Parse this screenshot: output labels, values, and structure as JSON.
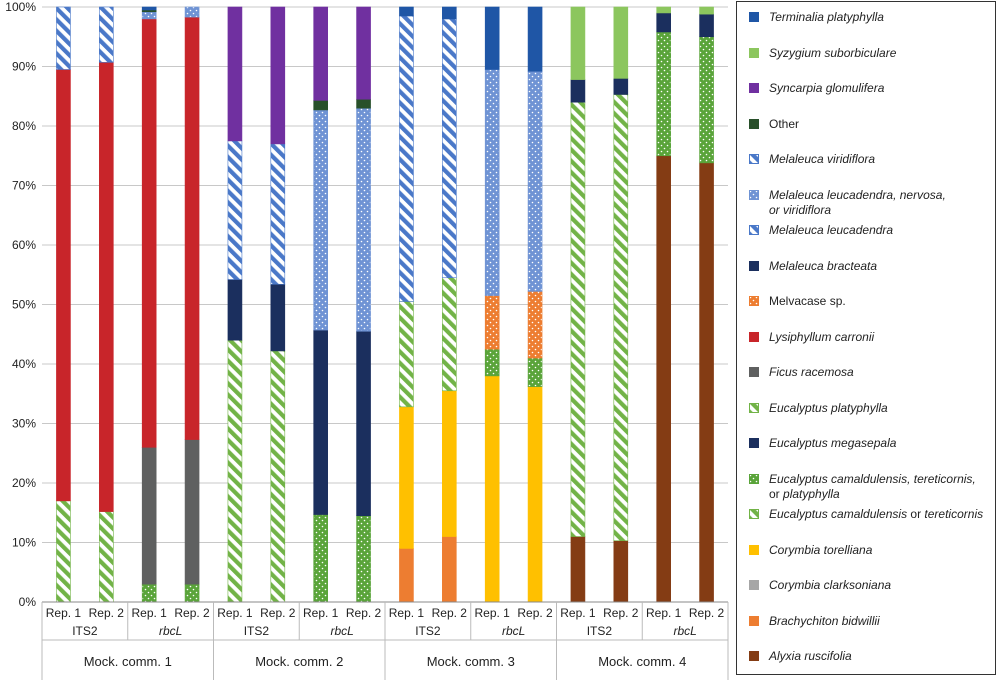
{
  "chart_data": {
    "type": "bar",
    "stacked": true,
    "normalized": true,
    "ylim": [
      0,
      100
    ],
    "y_ticks": [
      "0%",
      "10%",
      "20%",
      "30%",
      "40%",
      "50%",
      "60%",
      "70%",
      "80%",
      "90%",
      "100%"
    ],
    "grid": true,
    "legend_position": "right",
    "groups": [
      {
        "label": "Mock. comm. 1",
        "markers": [
          {
            "label": "ITS2",
            "italic": false
          },
          {
            "label": "rbcL",
            "italic": true
          }
        ]
      },
      {
        "label": "Mock. comm. 2",
        "markers": [
          {
            "label": "ITS2",
            "italic": false
          },
          {
            "label": "rbcL",
            "italic": true
          }
        ]
      },
      {
        "label": "Mock. comm. 3",
        "markers": [
          {
            "label": "ITS2",
            "italic": false
          },
          {
            "label": "rbcL",
            "italic": true
          }
        ]
      },
      {
        "label": "Mock. comm. 4",
        "markers": [
          {
            "label": "ITS2",
            "italic": false
          },
          {
            "label": "rbcL",
            "italic": true
          }
        ]
      }
    ],
    "bars": [
      {
        "community": "Mock. comm. 1",
        "marker": "ITS2",
        "rep": "Rep. 1",
        "segments": [
          [
            "E_plat",
            17
          ],
          [
            "Lysi",
            72.5
          ],
          [
            "M_leuc",
            10.5
          ]
        ]
      },
      {
        "community": "Mock. comm. 1",
        "marker": "ITS2",
        "rep": "Rep. 2",
        "segments": [
          [
            "E_plat",
            15.2
          ],
          [
            "Lysi",
            75.5
          ],
          [
            "M_leuc",
            9.3
          ]
        ]
      },
      {
        "community": "Mock. comm. 1",
        "marker": "rbcL",
        "rep": "Rep. 1",
        "segments": [
          [
            "E_cam3",
            3
          ],
          [
            "Ficus",
            23
          ],
          [
            "Lysi",
            72
          ],
          [
            "M_multi",
            1.2
          ],
          [
            "Other",
            0.3
          ],
          [
            "Terminalia",
            0.5
          ]
        ]
      },
      {
        "community": "Mock. comm. 1",
        "marker": "rbcL",
        "rep": "Rep. 2",
        "segments": [
          [
            "E_cam3",
            3
          ],
          [
            "Ficus",
            24.3
          ],
          [
            "Lysi",
            71
          ],
          [
            "M_multi",
            1.7
          ]
        ]
      },
      {
        "community": "Mock. comm. 2",
        "marker": "ITS2",
        "rep": "Rep. 1",
        "segments": [
          [
            "E_plat",
            44
          ],
          [
            "M_brac",
            10.2
          ],
          [
            "M_leuc",
            23.3
          ],
          [
            "Syncarpia",
            22.5
          ]
        ]
      },
      {
        "community": "Mock. comm. 2",
        "marker": "ITS2",
        "rep": "Rep. 2",
        "segments": [
          [
            "E_plat",
            42.2
          ],
          [
            "M_brac",
            11.2
          ],
          [
            "M_leuc",
            23.6
          ],
          [
            "Syncarpia",
            23
          ]
        ]
      },
      {
        "community": "Mock. comm. 2",
        "marker": "rbcL",
        "rep": "Rep. 1",
        "segments": [
          [
            "E_cam3",
            14.7
          ],
          [
            "M_brac",
            31
          ],
          [
            "M_multi",
            37
          ],
          [
            "Other",
            1.6
          ],
          [
            "Syncarpia",
            15.7
          ]
        ]
      },
      {
        "community": "Mock. comm. 2",
        "marker": "rbcL",
        "rep": "Rep. 2",
        "segments": [
          [
            "E_cam3",
            14.5
          ],
          [
            "M_brac",
            31
          ],
          [
            "M_multi",
            37.5
          ],
          [
            "Other",
            1.5
          ],
          [
            "Syncarpia",
            15.5
          ]
        ]
      },
      {
        "community": "Mock. comm. 3",
        "marker": "ITS2",
        "rep": "Rep. 1",
        "segments": [
          [
            "Brachy",
            9
          ],
          [
            "C_torel",
            23.8
          ],
          [
            "E_cam2",
            17.7
          ],
          [
            "M_leuc",
            48
          ],
          [
            "Terminalia",
            1.5
          ]
        ]
      },
      {
        "community": "Mock. comm. 3",
        "marker": "ITS2",
        "rep": "Rep. 2",
        "segments": [
          [
            "Brachy",
            11
          ],
          [
            "C_torel",
            24.5
          ],
          [
            "E_cam2",
            19
          ],
          [
            "M_leuc",
            43.5
          ],
          [
            "Terminalia",
            2
          ]
        ]
      },
      {
        "community": "Mock. comm. 3",
        "marker": "rbcL",
        "rep": "Rep. 1",
        "segments": [
          [
            "C_torel",
            38
          ],
          [
            "E_cam3",
            4.5
          ],
          [
            "Melvacase",
            9
          ],
          [
            "M_multi",
            38
          ],
          [
            "Terminalia",
            10.5
          ]
        ]
      },
      {
        "community": "Mock. comm. 3",
        "marker": "rbcL",
        "rep": "Rep. 2",
        "segments": [
          [
            "C_torel",
            36.2
          ],
          [
            "E_cam3",
            4.8
          ],
          [
            "Melvacase",
            11.2
          ],
          [
            "M_multi",
            37
          ],
          [
            "Terminalia",
            10.8
          ]
        ]
      },
      {
        "community": "Mock. comm. 4",
        "marker": "ITS2",
        "rep": "Rep. 1",
        "segments": [
          [
            "Alyxia",
            11
          ],
          [
            "E_cam2",
            73
          ],
          [
            "M_brac",
            3.8
          ],
          [
            "Syzygium",
            12.2
          ]
        ]
      },
      {
        "community": "Mock. comm. 4",
        "marker": "ITS2",
        "rep": "Rep. 2",
        "segments": [
          [
            "Alyxia",
            10.3
          ],
          [
            "E_cam2",
            75
          ],
          [
            "M_brac",
            2.7
          ],
          [
            "Syzygium",
            12
          ]
        ]
      },
      {
        "community": "Mock. comm. 4",
        "marker": "rbcL",
        "rep": "Rep. 1",
        "segments": [
          [
            "Alyxia",
            75
          ],
          [
            "E_cam3",
            20.8
          ],
          [
            "M_brac",
            3.2
          ],
          [
            "Syzygium",
            1
          ]
        ]
      },
      {
        "community": "Mock. comm. 4",
        "marker": "rbcL",
        "rep": "Rep. 2",
        "segments": [
          [
            "Alyxia",
            73.8
          ],
          [
            "E_cam3",
            21.2
          ],
          [
            "M_brac",
            3.8
          ],
          [
            "Syzygium",
            1.2
          ]
        ]
      }
    ],
    "legend": [
      {
        "key": "Terminalia",
        "parts": [
          {
            "t": "Terminalia platyphylla",
            "i": true
          }
        ],
        "color": "#1f56a6",
        "pattern": "solid"
      },
      {
        "key": "Syzygium",
        "parts": [
          {
            "t": "Syzygium suborbiculare",
            "i": true
          }
        ],
        "color": "#8cc65e",
        "pattern": "solid"
      },
      {
        "key": "Syncarpia",
        "parts": [
          {
            "t": "Syncarpia glomulifera",
            "i": true
          }
        ],
        "color": "#7030a0",
        "pattern": "solid"
      },
      {
        "key": "Other",
        "parts": [
          {
            "t": "Other",
            "i": false
          }
        ],
        "color": "#28502a",
        "pattern": "solid"
      },
      {
        "key": "M_viri",
        "parts": [
          {
            "t": "Melaleuca viridiflora",
            "i": true
          }
        ],
        "color": "#4a78c8",
        "pattern": "hatch"
      },
      {
        "key": "M_multi",
        "parts": [
          {
            "t": "Melaleuca leucadendra, nervosa,",
            "i": true
          }
        ],
        "parts2": [
          {
            "t": "or viridiflora",
            "i": true
          }
        ],
        "color": "#6f93d4",
        "pattern": "dots"
      },
      {
        "key": "M_leuc",
        "parts": [
          {
            "t": "Melaleuca leucadendra",
            "i": true
          }
        ],
        "color": "#4a78c8",
        "pattern": "hatch"
      },
      {
        "key": "M_brac",
        "parts": [
          {
            "t": "Melaleuca bracteata",
            "i": true
          }
        ],
        "color": "#1b2f5e",
        "pattern": "solid"
      },
      {
        "key": "Melvacase",
        "parts": [
          {
            "t": "Melvacase sp.",
            "i": false
          }
        ],
        "color": "#ed7d31",
        "pattern": "dots"
      },
      {
        "key": "Lysi",
        "parts": [
          {
            "t": "Lysiphyllum carronii",
            "i": true
          }
        ],
        "color": "#c8252a",
        "pattern": "solid"
      },
      {
        "key": "Ficus",
        "parts": [
          {
            "t": "Ficus racemosa",
            "i": true
          }
        ],
        "color": "#5f6060",
        "pattern": "solid"
      },
      {
        "key": "E_plat",
        "parts": [
          {
            "t": "Eucalyptus platyphylla",
            "i": true
          }
        ],
        "color": "#72b347",
        "pattern": "hatch"
      },
      {
        "key": "E_mega",
        "parts": [
          {
            "t": "Eucalyptus megasepala",
            "i": true
          }
        ],
        "color": "#1b2f5e",
        "pattern": "solid"
      },
      {
        "key": "E_cam3",
        "parts": [
          {
            "t": "Eucalyptus camaldulensis, tereticornis,",
            "i": true
          }
        ],
        "parts2": [
          {
            "t": "or ",
            "i": false
          },
          {
            "t": "platyphylla",
            "i": true
          }
        ],
        "color": "#5aa43a",
        "pattern": "dots"
      },
      {
        "key": "E_cam2",
        "parts": [
          {
            "t": "Eucalyptus camaldulensis",
            "i": true
          },
          {
            "t": " or ",
            "i": false
          },
          {
            "t": "tereticornis",
            "i": true
          }
        ],
        "color": "#72b347",
        "pattern": "hatch"
      },
      {
        "key": "C_torel",
        "parts": [
          {
            "t": "Corymbia torelliana",
            "i": true
          }
        ],
        "color": "#ffc000",
        "pattern": "solid"
      },
      {
        "key": "C_clark",
        "parts": [
          {
            "t": "Corymbia clarksoniana",
            "i": true
          }
        ],
        "color": "#a6a6a6",
        "pattern": "solid"
      },
      {
        "key": "Brachy",
        "parts": [
          {
            "t": "Brachychiton bidwillii",
            "i": true
          }
        ],
        "color": "#ed7d31",
        "pattern": "solid"
      },
      {
        "key": "Alyxia",
        "parts": [
          {
            "t": "Alyxia ruscifolia",
            "i": true
          }
        ],
        "color": "#843c14",
        "pattern": "solid"
      }
    ]
  }
}
